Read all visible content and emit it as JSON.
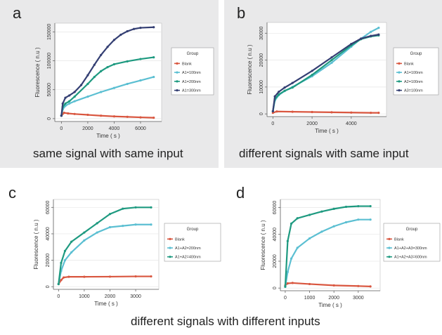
{
  "panels": {
    "a": {
      "letter": "a",
      "caption": "same signal with same input"
    },
    "b": {
      "letter": "b",
      "caption": "different signals with same input"
    },
    "c": {
      "letter": "c"
    },
    "d": {
      "letter": "d"
    },
    "bottom_caption": "different signals with different inputs"
  },
  "colors": {
    "blank": "#d9563f",
    "light_teal": "#5bbfd2",
    "teal": "#1e9a80",
    "navy": "#343f73",
    "panel_bg": "#e9e9ea"
  },
  "chart_data": [
    {
      "id": "a",
      "type": "line",
      "xlabel": "Time ( s )",
      "ylabel": "Fluorescence ( n.u )",
      "xlim": [
        -500,
        7600
      ],
      "ylim": [
        -5000,
        165000
      ],
      "xticks": [
        0,
        2000,
        4000,
        6000
      ],
      "yticks": [
        0,
        50000,
        100000,
        150000
      ],
      "grid": true,
      "legend": {
        "title": "Group",
        "placement": "right"
      },
      "series": [
        {
          "name": "Blank",
          "color": "#d9563f",
          "x": [
            0,
            200,
            500,
            1000,
            2000,
            3000,
            4000,
            5000,
            6000,
            7000
          ],
          "y": [
            5000,
            10000,
            9000,
            8000,
            6500,
            5000,
            3800,
            3000,
            2200,
            1500
          ]
        },
        {
          "name": "A1=100nm",
          "color": "#5bbfd2",
          "x": [
            0,
            100,
            300,
            600,
            1000,
            2000,
            3000,
            4000,
            5000,
            6000,
            7000
          ],
          "y": [
            5000,
            16000,
            22000,
            26000,
            30000,
            38000,
            46000,
            53000,
            60000,
            66000,
            72000
          ]
        },
        {
          "name": "A1=200nm",
          "color": "#1e9a80",
          "x": [
            0,
            100,
            300,
            600,
            1000,
            2000,
            2500,
            3000,
            3500,
            4000,
            5000,
            6000,
            7000
          ],
          "y": [
            5000,
            20000,
            26000,
            30000,
            38000,
            60000,
            72000,
            82000,
            89000,
            94000,
            99000,
            103000,
            106000
          ]
        },
        {
          "name": "A1=300nm",
          "color": "#343f73",
          "x": [
            0,
            100,
            300,
            600,
            1000,
            1500,
            2000,
            2500,
            3000,
            3500,
            4000,
            4500,
            5000,
            5500,
            6000,
            7000
          ],
          "y": [
            5000,
            26000,
            36000,
            40000,
            46000,
            58000,
            75000,
            93000,
            110000,
            124000,
            136000,
            145000,
            151000,
            155000,
            157000,
            158000
          ]
        }
      ]
    },
    {
      "id": "b",
      "type": "line",
      "xlabel": "Time ( s )",
      "ylabel": "Fluorescence ( n.u )",
      "xlim": [
        -300,
        5800
      ],
      "ylim": [
        -1000,
        34000
      ],
      "xticks": [
        0,
        2000,
        4000
      ],
      "yticks": [
        0,
        10000,
        20000,
        30000
      ],
      "grid": true,
      "legend": {
        "title": "Group",
        "placement": "right"
      },
      "series": [
        {
          "name": "Blank",
          "color": "#d9563f",
          "x": [
            0,
            200,
            1000,
            2000,
            3000,
            4000,
            5000,
            5400
          ],
          "y": [
            400,
            900,
            800,
            700,
            600,
            500,
            400,
            400
          ]
        },
        {
          "name": "A1=100nm",
          "color": "#5bbfd2",
          "x": [
            0,
            100,
            300,
            600,
            1000,
            2000,
            3000,
            4000,
            4500,
            5000,
            5400
          ],
          "y": [
            1000,
            5000,
            7000,
            8500,
            10000,
            14000,
            19000,
            25000,
            28000,
            30500,
            32000
          ]
        },
        {
          "name": "A2=100nm",
          "color": "#1e9a80",
          "x": [
            0,
            100,
            300,
            600,
            1000,
            2000,
            3000,
            4000,
            4500,
            5000,
            5400
          ],
          "y": [
            1000,
            5500,
            7200,
            8600,
            9800,
            14500,
            20000,
            25500,
            27800,
            28800,
            29200
          ]
        },
        {
          "name": "A3=100nm",
          "color": "#343f73",
          "x": [
            0,
            100,
            300,
            600,
            1000,
            2000,
            3000,
            4000,
            4500,
            5000,
            5400
          ],
          "y": [
            1000,
            6500,
            8200,
            9800,
            11500,
            16000,
            21000,
            26000,
            28000,
            29000,
            29500
          ]
        }
      ]
    },
    {
      "id": "c",
      "type": "line",
      "xlabel": "Time ( s )",
      "ylabel": "Fluorescence ( n.u )",
      "xlim": [
        -200,
        3900
      ],
      "ylim": [
        -2000,
        66000
      ],
      "xticks": [
        0,
        1000,
        2000,
        3000
      ],
      "yticks": [
        0,
        20000,
        40000,
        60000
      ],
      "grid": true,
      "legend": {
        "title": "Group",
        "placement": "right"
      },
      "series": [
        {
          "name": "Blank",
          "color": "#d9563f",
          "x": [
            0,
            100,
            200,
            400,
            1000,
            2000,
            3000,
            3600
          ],
          "y": [
            2000,
            5000,
            7000,
            7500,
            7500,
            7600,
            7800,
            7800
          ]
        },
        {
          "name": "A1+A2=200nm",
          "color": "#5bbfd2",
          "x": [
            0,
            100,
            250,
            500,
            1000,
            1500,
            2000,
            2500,
            3000,
            3600
          ],
          "y": [
            2000,
            12000,
            20000,
            26000,
            35000,
            41000,
            45000,
            46000,
            47000,
            47000
          ]
        },
        {
          "name": "A1+A2=400nm",
          "color": "#1e9a80",
          "x": [
            0,
            100,
            250,
            500,
            1000,
            1500,
            2000,
            2500,
            3000,
            3600
          ],
          "y": [
            2000,
            18000,
            27000,
            34000,
            41000,
            48000,
            55000,
            59000,
            60000,
            60000
          ]
        }
      ]
    },
    {
      "id": "d",
      "type": "line",
      "xlabel": "Time ( s )",
      "ylabel": "Fluorescence ( n.u )",
      "xlim": [
        -200,
        3900
      ],
      "ylim": [
        -2000,
        66000
      ],
      "xticks": [
        0,
        1000,
        2000,
        3000
      ],
      "yticks": [
        0,
        20000,
        40000,
        60000
      ],
      "grid": true,
      "legend": {
        "title": "Group",
        "placement": "right"
      },
      "series": [
        {
          "name": "Blank",
          "color": "#d9563f",
          "x": [
            0,
            100,
            300,
            1000,
            2000,
            3000,
            3500
          ],
          "y": [
            2000,
            3500,
            3800,
            3000,
            2000,
            1500,
            1200
          ]
        },
        {
          "name": "A1+A2+A3=300nm",
          "color": "#5bbfd2",
          "x": [
            0,
            100,
            250,
            500,
            1000,
            1500,
            2000,
            2500,
            3000,
            3500
          ],
          "y": [
            1000,
            12000,
            22000,
            30000,
            37000,
            42000,
            46000,
            49000,
            51000,
            51000
          ]
        },
        {
          "name": "A1+A2+A3=600nm",
          "color": "#1e9a80",
          "x": [
            0,
            100,
            250,
            500,
            1000,
            1500,
            2000,
            2500,
            3000,
            3500
          ],
          "y": [
            1000,
            35000,
            48000,
            52000,
            54500,
            57000,
            59000,
            60500,
            61000,
            61000
          ]
        }
      ]
    }
  ]
}
